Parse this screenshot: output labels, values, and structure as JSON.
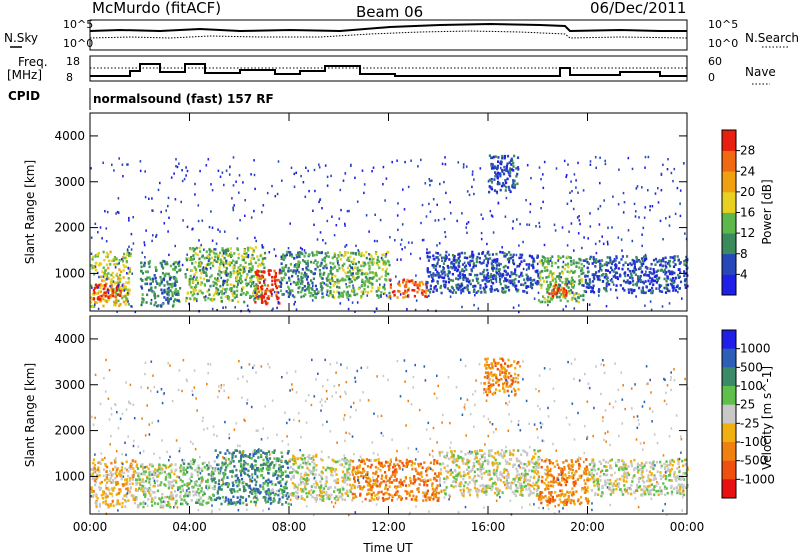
{
  "header": {
    "station": "McMurdo (fitACF)",
    "beam": "Beam 06",
    "date": "06/Dec/2011"
  },
  "summary_panels": {
    "nsky_label": "N.Sky",
    "nsearch_label": "N.Search",
    "nsky_ticks": [
      "10^5",
      "10^0"
    ],
    "nsearch_ticks": [
      "10^5",
      "10^0"
    ],
    "freq_label": "Freq.",
    "freq_unit": "[MHz]",
    "freq_ticks": [
      "18",
      "8"
    ],
    "nave_label": "Nave",
    "nave_ticks": [
      "60",
      "0"
    ],
    "cpid_label": "CPID",
    "cpid_text": "normalsound (fast) 157 RF"
  },
  "chart_data": [
    {
      "type": "heatmap",
      "name": "power",
      "ylabel": "Slant Range [km]",
      "y_ticks": [
        "1000",
        "2000",
        "3000",
        "4000"
      ],
      "y_tick_values": [
        1000,
        2000,
        3000,
        4000
      ],
      "ylim": [
        180,
        4500
      ],
      "x_ticks": [
        "00:00",
        "04:00",
        "08:00",
        "12:00",
        "16:00",
        "20:00",
        "00:00"
      ],
      "x_tick_hours": [
        0,
        4,
        8,
        12,
        16,
        20,
        24
      ],
      "xlim": [
        0,
        24
      ],
      "colorbar": {
        "label": "Power [dB]",
        "ticks": [
          "4",
          "8",
          "12",
          "16",
          "20",
          "24",
          "28"
        ],
        "colors": [
          "#1f1fe8",
          "#2748b8",
          "#3b8a5c",
          "#5cb84a",
          "#e8d020",
          "#f0a010",
          "#ef6a10",
          "#e82010"
        ]
      },
      "regions": [
        {
          "t0": 0.0,
          "t1": 1.6,
          "r0": 300,
          "r1": 1500,
          "level": 4
        },
        {
          "t0": 0.1,
          "t1": 1.2,
          "r0": 450,
          "r1": 800,
          "level": 7
        },
        {
          "t0": 2.0,
          "t1": 3.6,
          "r0": 300,
          "r1": 1300,
          "level": 2
        },
        {
          "t0": 3.8,
          "t1": 5.8,
          "r0": 400,
          "r1": 1600,
          "level": 3
        },
        {
          "t0": 5.8,
          "t1": 7.0,
          "r0": 400,
          "r1": 1600,
          "level": 3
        },
        {
          "t0": 6.6,
          "t1": 7.6,
          "r0": 350,
          "r1": 1100,
          "level": 7
        },
        {
          "t0": 7.6,
          "t1": 9.5,
          "r0": 500,
          "r1": 1500,
          "level": 2
        },
        {
          "t0": 9.5,
          "t1": 12.0,
          "r0": 500,
          "r1": 1500,
          "level": 3
        },
        {
          "t0": 12.0,
          "t1": 13.5,
          "r0": 500,
          "r1": 900,
          "level": 6
        },
        {
          "t0": 13.5,
          "t1": 18.0,
          "r0": 600,
          "r1": 1500,
          "level": 1
        },
        {
          "t0": 16.0,
          "t1": 17.2,
          "r0": 2800,
          "r1": 3600,
          "level": 1
        },
        {
          "t0": 18.0,
          "t1": 19.8,
          "r0": 400,
          "r1": 1400,
          "level": 3
        },
        {
          "t0": 18.4,
          "t1": 19.2,
          "r0": 500,
          "r1": 800,
          "level": 7
        },
        {
          "t0": 19.8,
          "t1": 24.0,
          "r0": 600,
          "r1": 1400,
          "level": 1
        }
      ]
    },
    {
      "type": "heatmap",
      "name": "velocity",
      "ylabel": "Slant Range [km]",
      "y_ticks": [
        "1000",
        "2000",
        "3000",
        "4000"
      ],
      "y_tick_values": [
        1000,
        2000,
        3000,
        4000
      ],
      "ylim": [
        180,
        4500
      ],
      "x_ticks": [
        "00:00",
        "04:00",
        "08:00",
        "12:00",
        "16:00",
        "20:00",
        "00:00"
      ],
      "x_tick_hours": [
        0,
        4,
        8,
        12,
        16,
        20,
        24
      ],
      "xlim": [
        0,
        24
      ],
      "xlabel": "Time UT",
      "colorbar": {
        "label": "Velocity [m s^-1]",
        "ticks": [
          "1000",
          "500",
          "100",
          "25",
          "-25",
          "-100",
          "-500",
          "-1000"
        ],
        "colors": [
          "#1f1fe8",
          "#2e5fb8",
          "#3a8a6a",
          "#5ec04a",
          "#c8c8c8",
          "#f0b010",
          "#f08010",
          "#ef5010",
          "#e81010"
        ]
      },
      "regions": [
        {
          "t0": 0.0,
          "t1": 1.8,
          "r0": 350,
          "r1": 1400,
          "level": 5
        },
        {
          "t0": 1.8,
          "t1": 3.6,
          "r0": 350,
          "r1": 1300,
          "level": 4
        },
        {
          "t0": 3.6,
          "t1": 5.0,
          "r0": 400,
          "r1": 1400,
          "level": 3
        },
        {
          "t0": 5.0,
          "t1": 8.0,
          "r0": 400,
          "r1": 1600,
          "level": 2
        },
        {
          "t0": 8.0,
          "t1": 10.5,
          "r0": 500,
          "r1": 1500,
          "level": 4
        },
        {
          "t0": 10.5,
          "t1": 14.0,
          "r0": 500,
          "r1": 1400,
          "level": 6
        },
        {
          "t0": 14.0,
          "t1": 18.0,
          "r0": 600,
          "r1": 1600,
          "level": 4
        },
        {
          "t0": 15.8,
          "t1": 17.2,
          "r0": 2800,
          "r1": 3600,
          "level": 6
        },
        {
          "t0": 18.0,
          "t1": 20.0,
          "r0": 400,
          "r1": 1400,
          "level": 6
        },
        {
          "t0": 20.0,
          "t1": 24.0,
          "r0": 600,
          "r1": 1400,
          "level": 4
        }
      ]
    }
  ]
}
